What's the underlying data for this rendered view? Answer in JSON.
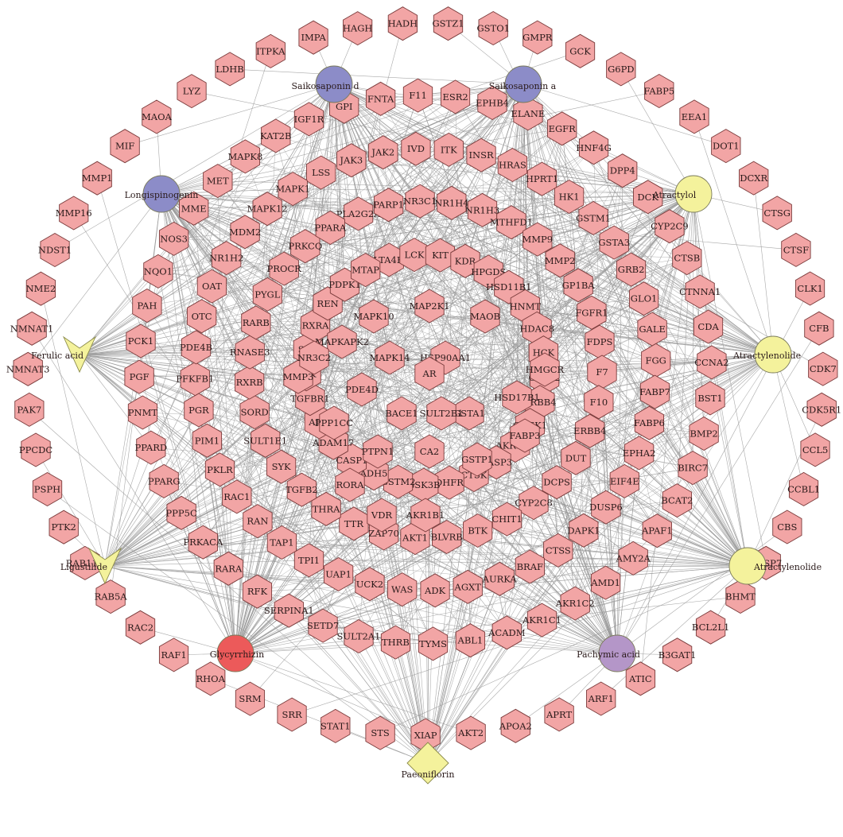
{
  "compounds": [
    {
      "id": "saikosaponin-d",
      "label": "Saikosaponin d",
      "shape": "circle",
      "color": "#8c8cc8"
    },
    {
      "id": "saikosaponin-a",
      "label": "Saikosaponin a",
      "shape": "circle",
      "color": "#8c8cc8"
    },
    {
      "id": "longispinogenin",
      "label": "Longispinogenin",
      "shape": "circle",
      "color": "#8c8cc8"
    },
    {
      "id": "atractylol",
      "label": "Atractylol",
      "shape": "circle",
      "color": "#f4f29c"
    },
    {
      "id": "ferulic-acid",
      "label": "Ferulic acid",
      "shape": "v",
      "color": "#f4f29c"
    },
    {
      "id": "atractylenolide-1",
      "label": "Atractylenolide",
      "shape": "circle",
      "color": "#f4f29c"
    },
    {
      "id": "ligustilide",
      "label": "Ligustilide",
      "shape": "v",
      "color": "#f4f29c"
    },
    {
      "id": "atractylenolide-2",
      "label": "Atractylenolide",
      "shape": "circle",
      "color": "#f4f29c"
    },
    {
      "id": "glycyrrhizin",
      "label": "Glycyrrhizin",
      "shape": "circle",
      "color": "#ec5a5a"
    },
    {
      "id": "pachymic-acid",
      "label": "Pachymic acid",
      "shape": "circle",
      "color": "#b496c8"
    },
    {
      "id": "paeoniflorin",
      "label": "Paeoniflorin",
      "shape": "diamond",
      "color": "#f4f29c"
    }
  ],
  "outer_targets": [
    "ITPKA",
    "IMPA",
    "HAGH",
    "HADH",
    "GSTZ1",
    "GSTO1",
    "GMPR",
    "GCK",
    "G6PD",
    "FABP5",
    "EEA1",
    "DOT1",
    "DCXR",
    "CTSG",
    "CTSF",
    "CLK1",
    "CFB",
    "CDK7",
    "CDK5R1",
    "CCL5",
    "CCBL1",
    "CBS",
    "CASP7",
    "BHMT",
    "BCL2L1",
    "B3GAT1",
    "ATIC",
    "ARF1",
    "APRT",
    "APOA2",
    "AKT2",
    "XIAP",
    "STS",
    "STAT1",
    "SRR",
    "SRM",
    "RHOA",
    "RAF1",
    "RAC2",
    "RAB5A",
    "RAB11A",
    "PTK2",
    "PSPH",
    "PPCDC",
    "PAK7",
    "NMNAT3",
    "NMNAT1",
    "NME2",
    "NDST1",
    "MMP16",
    "MMP1",
    "MIF",
    "MAOA",
    "LYZ",
    "LDHB"
  ],
  "rings": [
    [
      "KAT2B",
      "IGF1R",
      "GPI",
      "FNTA",
      "F11",
      "ESR2",
      "EPHB4",
      "ELANE",
      "EGFR",
      "HNF4G",
      "DPP4",
      "DCK",
      "CYP2C9",
      "CTSB",
      "CTNNA1",
      "CDA",
      "CCNA2",
      "BST1",
      "BMP2",
      "BIRC7",
      "BCAT2",
      "APAF1",
      "AMY2A",
      "AMD1",
      "AKR1C2",
      "AKR1C1",
      "ACADM",
      "ABL1",
      "TYMS",
      "THRB",
      "SULT2A1",
      "SETD7",
      "SERPINA1",
      "RFK",
      "RARA",
      "PRKACA",
      "PPP5C",
      "PPARG",
      "PPARD",
      "PNMT",
      "PGF",
      "PCK1",
      "PAH",
      "NQO1",
      "NOS3",
      "MME",
      "MET",
      "MAPK8"
    ],
    [
      "LSS",
      "JAK3",
      "JAK2",
      "IVD",
      "ITK",
      "INSR",
      "HRAS",
      "HPRT1",
      "HK1",
      "GSTM1",
      "GSTA3",
      "GRB2",
      "GLO1",
      "GALE",
      "FGG",
      "FABP7",
      "FABP6",
      "EPHA2",
      "EIF4E",
      "DUSP6",
      "DAPK1",
      "CTSS",
      "BRAF",
      "AURKA",
      "AGXT",
      "ADK",
      "WAS",
      "UCK2",
      "UAP1",
      "TPI1",
      "TAP1",
      "RAN",
      "RAC1",
      "PKLR",
      "PIM1",
      "PGR",
      "PFKFB1",
      "PDE4B",
      "OTC",
      "OAT",
      "NR1H2",
      "MDM2",
      "MAPK12",
      "MAPK1"
    ],
    [
      "PLA2G2A",
      "PARP1",
      "NR3C1",
      "NR1H4",
      "NR1H3",
      "MTHFD1",
      "MMP9",
      "MMP2",
      "GP1BA",
      "FGFR1",
      "FDPS",
      "F7",
      "F10",
      "ERBB4",
      "DUT",
      "DCPS",
      "CYP2C8",
      "CHIT1",
      "BTK",
      "BLVRB",
      "AKT1",
      "ZAP70",
      "TTR",
      "THRA",
      "TGFB2",
      "SYK",
      "SULT1E1",
      "SORD",
      "RXRB",
      "RNASE3",
      "RARB",
      "PYGL",
      "PROCR",
      "PRKCQ",
      "PPARA"
    ],
    [
      "LTA4H",
      "LCK",
      "KIT",
      "KDR",
      "HPGDS",
      "HSD11B1",
      "HNMT",
      "HDAC8",
      "HCK",
      "GSTT2",
      "ERBB4X",
      "CHEK1",
      "AKR1C3",
      "CASP3",
      "CTSK",
      "DHFR",
      "GSK3B",
      "GSTM2",
      "ADH5",
      "CASP1",
      "ADAM17",
      "ABO",
      "TGFBR1",
      "TEK",
      "SRC",
      "RXRA",
      "REN",
      "PDPK1",
      "MTAP"
    ]
  ],
  "inner_nodes": [
    "MAP2K1",
    "MAPK10",
    "MAOB",
    "MAPKAPK2",
    "MAPK14",
    "HSP90AA1",
    "HMGCR",
    "HSD17B1",
    "GSTA1",
    "FABP3",
    "GSTP1",
    "SULT2B1",
    "AR",
    "BACE1",
    "CA2",
    "PTPN1",
    "PPP1CC",
    "PDE4D",
    "MMP3",
    "NR3C2",
    "RORA",
    "VDR",
    "AKR1B1"
  ],
  "edge_color": "#9a9a9a",
  "hex_fill": "#f2a5a5",
  "hex_stroke": "#7a3b3b"
}
